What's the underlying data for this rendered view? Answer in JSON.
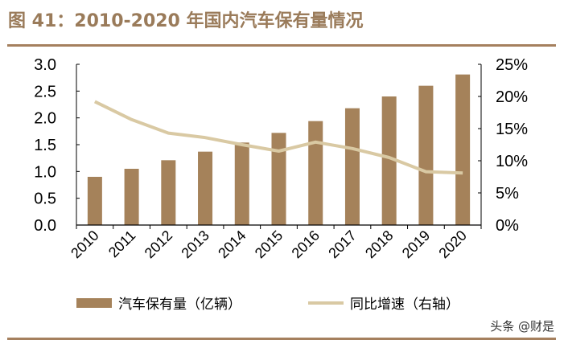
{
  "title": "图 41：2010-2020 年国内汽车保有量情况",
  "watermark": "头条 @财是",
  "chart_data": {
    "type": "bar+line",
    "categories": [
      "2010",
      "2011",
      "2012",
      "2013",
      "2014",
      "2015",
      "2016",
      "2017",
      "2018",
      "2019",
      "2020"
    ],
    "series": [
      {
        "name": "汽车保有量（亿辆）",
        "type": "bar",
        "axis": "left",
        "color": "#a5825a",
        "values": [
          0.9,
          1.05,
          1.21,
          1.37,
          1.54,
          1.72,
          1.94,
          2.18,
          2.4,
          2.6,
          2.81
        ]
      },
      {
        "name": "同比增速（右轴）",
        "type": "line",
        "axis": "right",
        "color": "#d9c9a3",
        "values": [
          19.2,
          16.4,
          14.3,
          13.6,
          12.5,
          11.5,
          12.9,
          11.9,
          10.5,
          8.3,
          8.1
        ]
      }
    ],
    "left_axis": {
      "ylim": [
        0,
        3.0
      ],
      "ticks": [
        "0.0",
        "0.5",
        "1.0",
        "1.5",
        "2.0",
        "2.5",
        "3.0"
      ]
    },
    "right_axis": {
      "ylim": [
        0,
        25
      ],
      "ticks": [
        "0%",
        "5%",
        "10%",
        "15%",
        "20%",
        "25%"
      ]
    },
    "grid": false,
    "legend_position": "bottom"
  }
}
